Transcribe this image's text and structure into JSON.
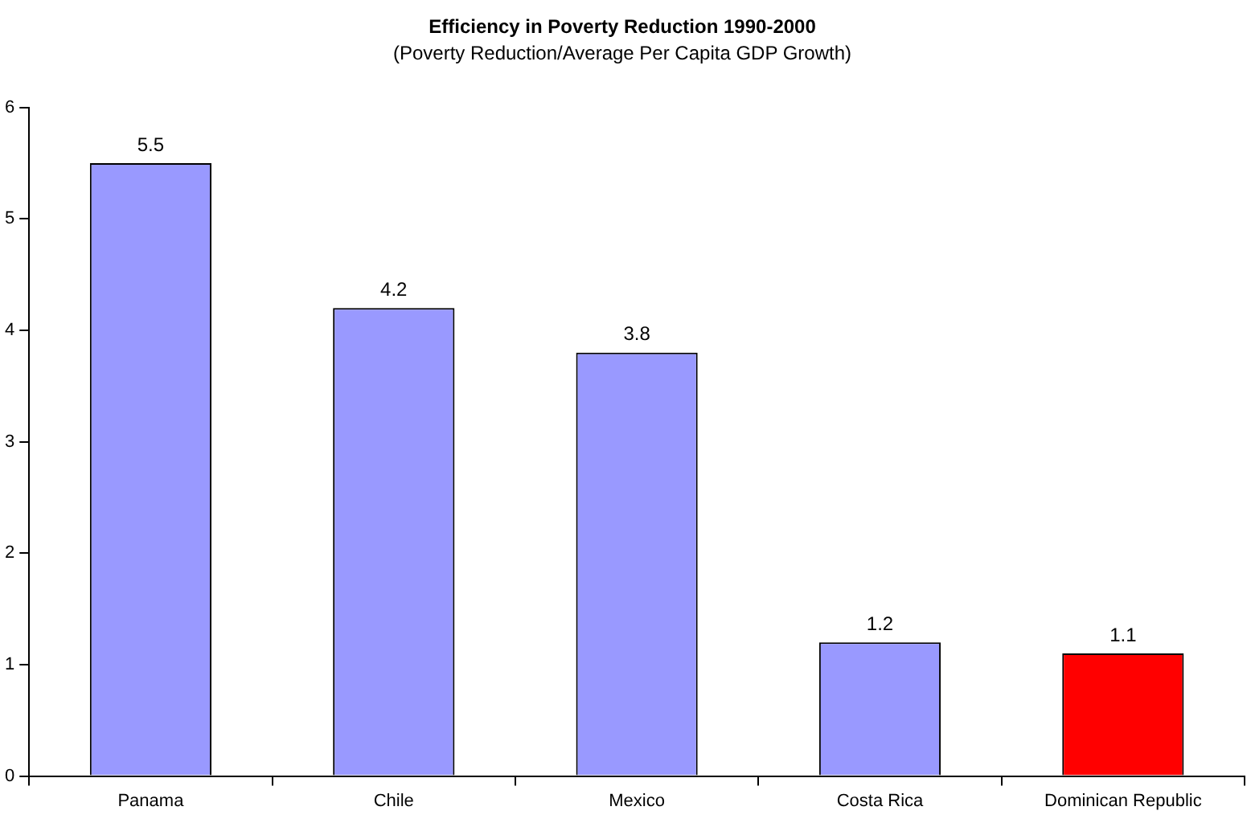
{
  "chart_data": {
    "type": "bar",
    "title": "Efficiency in Poverty Reduction 1990-2000",
    "subtitle": "(Poverty Reduction/Average Per Capita GDP Growth)",
    "categories": [
      "Panama",
      "Chile",
      "Mexico",
      "Costa Rica",
      "Dominican Republic"
    ],
    "values": [
      5.5,
      4.2,
      3.8,
      1.2,
      1.1
    ],
    "colors": [
      "#9999ff",
      "#9999ff",
      "#9999ff",
      "#9999ff",
      "#ff0000"
    ],
    "ylim": [
      0,
      6
    ],
    "yticks": [
      0,
      1,
      2,
      3,
      4,
      5,
      6
    ],
    "grid": false,
    "legend": false,
    "data_labels": true
  }
}
